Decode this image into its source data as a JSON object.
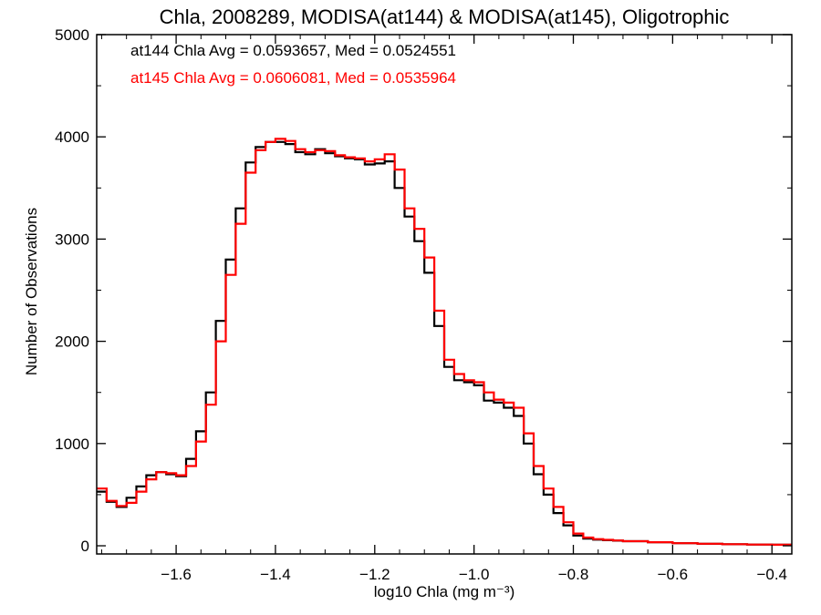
{
  "chart_data": {
    "type": "line",
    "title": "Chla, 2008289, MODISA(at144) & MODISA(at145), Oligotrophic",
    "xlabel": "log10 Chla (mg m⁻³)",
    "ylabel": "Number of Observations",
    "xlim": [
      -1.76,
      -0.36
    ],
    "ylim": [
      -80,
      5000
    ],
    "x_ticks": [
      -1.6,
      -1.4,
      -1.2,
      -1.0,
      -0.8,
      -0.6,
      -0.4
    ],
    "x_tick_labels": [
      "−1.6",
      "−1.4",
      "−1.2",
      "−1.0",
      "−0.8",
      "−0.6",
      "−0.4"
    ],
    "y_ticks": [
      0,
      1000,
      2000,
      3000,
      4000,
      5000
    ],
    "y_tick_labels": [
      "0",
      "1000",
      "2000",
      "3000",
      "4000",
      "5000"
    ],
    "grid": false,
    "annotations": [
      {
        "text": "at144 Chla Avg = 0.0593657, Med = 0.0524551",
        "color": "#000000"
      },
      {
        "text": "at145 Chla Avg = 0.0606081, Med = 0.0535964",
        "color": "#ff0000"
      }
    ],
    "series": [
      {
        "color": "#000000",
        "x": [
          -1.76,
          -1.74,
          -1.72,
          -1.7,
          -1.68,
          -1.66,
          -1.64,
          -1.62,
          -1.6,
          -1.58,
          -1.56,
          -1.54,
          -1.52,
          -1.5,
          -1.48,
          -1.46,
          -1.44,
          -1.42,
          -1.4,
          -1.38,
          -1.36,
          -1.34,
          -1.32,
          -1.3,
          -1.28,
          -1.26,
          -1.24,
          -1.22,
          -1.2,
          -1.18,
          -1.16,
          -1.14,
          -1.12,
          -1.1,
          -1.08,
          -1.06,
          -1.04,
          -1.02,
          -1.0,
          -0.98,
          -0.96,
          -0.94,
          -0.92,
          -0.9,
          -0.88,
          -0.86,
          -0.84,
          -0.82,
          -0.8,
          -0.78,
          -0.76,
          -0.74,
          -0.72,
          -0.7,
          -0.65,
          -0.6,
          -0.55,
          -0.5,
          -0.45,
          -0.4,
          -0.36
        ],
        "y": [
          530,
          430,
          380,
          470,
          580,
          690,
          720,
          700,
          680,
          850,
          1120,
          1500,
          2200,
          2800,
          3300,
          3750,
          3900,
          3950,
          3950,
          3930,
          3850,
          3830,
          3880,
          3840,
          3810,
          3790,
          3780,
          3730,
          3740,
          3760,
          3500,
          3220,
          2980,
          2670,
          2150,
          1750,
          1620,
          1600,
          1570,
          1420,
          1400,
          1350,
          1270,
          1000,
          700,
          500,
          320,
          200,
          100,
          70,
          60,
          55,
          50,
          45,
          35,
          25,
          20,
          15,
          12,
          10,
          8
        ]
      },
      {
        "color": "#ff0000",
        "x": [
          -1.76,
          -1.74,
          -1.72,
          -1.7,
          -1.68,
          -1.66,
          -1.64,
          -1.62,
          -1.6,
          -1.58,
          -1.56,
          -1.54,
          -1.52,
          -1.5,
          -1.48,
          -1.46,
          -1.44,
          -1.42,
          -1.4,
          -1.38,
          -1.36,
          -1.34,
          -1.32,
          -1.3,
          -1.28,
          -1.26,
          -1.24,
          -1.22,
          -1.2,
          -1.18,
          -1.16,
          -1.14,
          -1.12,
          -1.1,
          -1.08,
          -1.06,
          -1.04,
          -1.02,
          -1.0,
          -0.98,
          -0.96,
          -0.94,
          -0.92,
          -0.9,
          -0.88,
          -0.86,
          -0.84,
          -0.82,
          -0.8,
          -0.78,
          -0.76,
          -0.74,
          -0.72,
          -0.7,
          -0.65,
          -0.6,
          -0.55,
          -0.5,
          -0.45,
          -0.4,
          -0.36
        ],
        "y": [
          560,
          440,
          390,
          420,
          530,
          650,
          720,
          710,
          690,
          780,
          1020,
          1380,
          2000,
          2650,
          3150,
          3650,
          3870,
          3950,
          3980,
          3960,
          3880,
          3850,
          3870,
          3860,
          3820,
          3800,
          3790,
          3760,
          3780,
          3830,
          3680,
          3300,
          3100,
          2820,
          2300,
          1820,
          1680,
          1620,
          1600,
          1500,
          1430,
          1400,
          1350,
          1100,
          780,
          560,
          380,
          230,
          120,
          80,
          65,
          58,
          52,
          45,
          35,
          25,
          20,
          15,
          12,
          10,
          8
        ]
      }
    ]
  }
}
